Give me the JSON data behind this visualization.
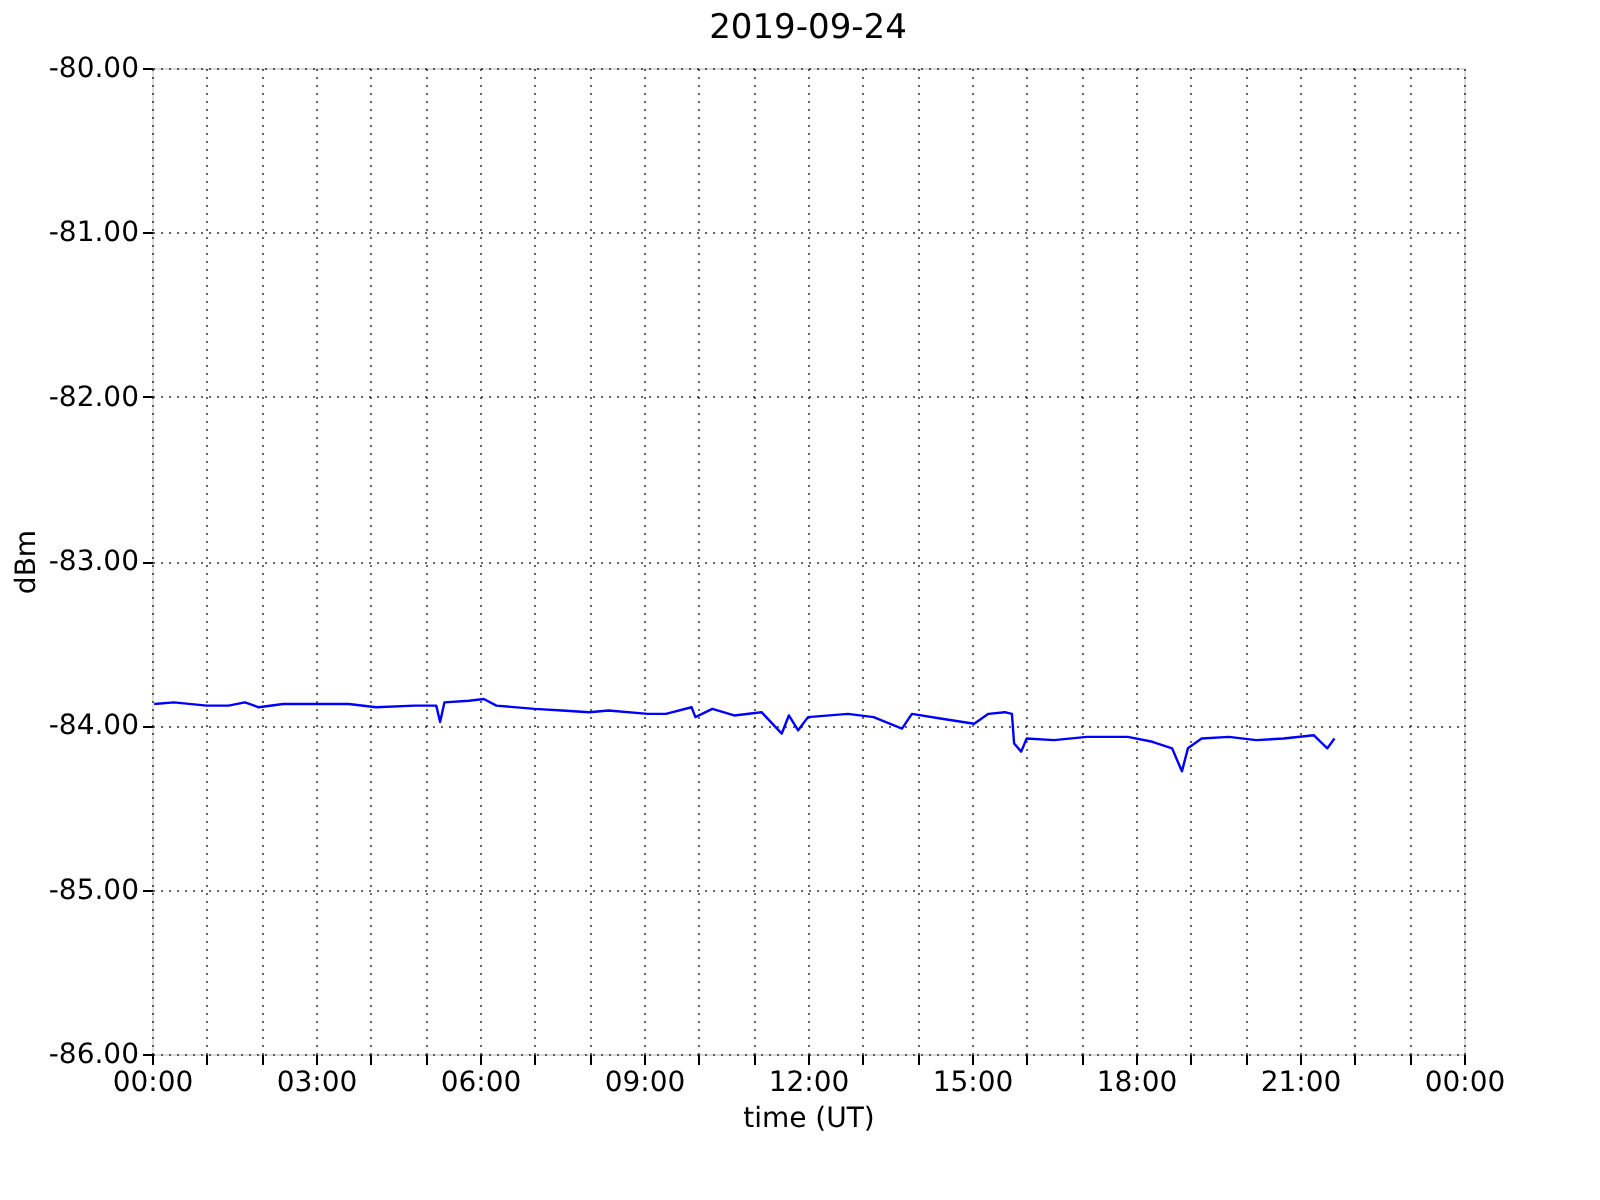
{
  "chart_data": {
    "type": "line",
    "title": "2019-09-24",
    "xlabel": "time (UT)",
    "ylabel": "dBm",
    "x": [
      0.04,
      0.4,
      1.0,
      1.4,
      1.7,
      1.95,
      2.4,
      3.6,
      4.1,
      4.8,
      5.2,
      5.27,
      5.35,
      5.8,
      6.07,
      6.3,
      7.0,
      7.5,
      8.0,
      8.35,
      9.07,
      9.4,
      9.87,
      9.94,
      10.25,
      10.65,
      11.15,
      11.52,
      11.65,
      11.82,
      12.0,
      12.73,
      13.2,
      13.72,
      13.9,
      14.45,
      15.04,
      15.3,
      15.6,
      15.73,
      15.77,
      15.9,
      16.0,
      16.5,
      17.1,
      17.85,
      18.3,
      18.66,
      18.84,
      18.95,
      19.2,
      19.7,
      20.2,
      20.7,
      21.25,
      21.5,
      21.63
    ],
    "series": [
      {
        "color": "#0000ff",
        "values": [
          -83.87,
          -83.86,
          -83.88,
          -83.88,
          -83.86,
          -83.89,
          -83.87,
          -83.87,
          -83.89,
          -83.88,
          -83.88,
          -83.98,
          -83.86,
          -83.85,
          -83.84,
          -83.88,
          -83.9,
          -83.91,
          -83.92,
          -83.91,
          -83.93,
          -83.93,
          -83.89,
          -83.95,
          -83.9,
          -83.94,
          -83.92,
          -84.05,
          -83.94,
          -84.03,
          -83.95,
          -83.93,
          -83.95,
          -84.02,
          -83.93,
          -83.96,
          -83.99,
          -83.93,
          -83.92,
          -83.93,
          -84.11,
          -84.16,
          -84.08,
          -84.09,
          -84.07,
          -84.07,
          -84.1,
          -84.14,
          -84.28,
          -84.14,
          -84.08,
          -84.07,
          -84.09,
          -84.08,
          -84.06,
          -84.14,
          -84.08
        ]
      }
    ],
    "xlim": [
      0,
      24
    ],
    "xticks": [
      {
        "value": 0,
        "label": "00:00"
      },
      {
        "value": 1,
        "label": null
      },
      {
        "value": 2,
        "label": null
      },
      {
        "value": 3,
        "label": "03:00"
      },
      {
        "value": 4,
        "label": null
      },
      {
        "value": 5,
        "label": null
      },
      {
        "value": 6,
        "label": "06:00"
      },
      {
        "value": 7,
        "label": null
      },
      {
        "value": 8,
        "label": null
      },
      {
        "value": 9,
        "label": "09:00"
      },
      {
        "value": 10,
        "label": null
      },
      {
        "value": 11,
        "label": null
      },
      {
        "value": 12,
        "label": "12:00"
      },
      {
        "value": 13,
        "label": null
      },
      {
        "value": 14,
        "label": null
      },
      {
        "value": 15,
        "label": "15:00"
      },
      {
        "value": 16,
        "label": null
      },
      {
        "value": 17,
        "label": null
      },
      {
        "value": 18,
        "label": "18:00"
      },
      {
        "value": 19,
        "label": null
      },
      {
        "value": 20,
        "label": null
      },
      {
        "value": 21,
        "label": "21:00"
      },
      {
        "value": 22,
        "label": null
      },
      {
        "value": 23,
        "label": null
      },
      {
        "value": 24,
        "label": "00:00"
      }
    ],
    "ylim": [
      -86,
      -80
    ],
    "yticks": [
      {
        "value": -86,
        "label": "-86.00"
      },
      {
        "value": -85,
        "label": "-85.00"
      },
      {
        "value": -84,
        "label": "-84.00"
      },
      {
        "value": -83,
        "label": "-83.00"
      },
      {
        "value": -82,
        "label": "-82.00"
      },
      {
        "value": -81,
        "label": "-81.00"
      },
      {
        "value": -80,
        "label": "-80.00"
      }
    ],
    "grid": true,
    "line_style": "solid"
  }
}
